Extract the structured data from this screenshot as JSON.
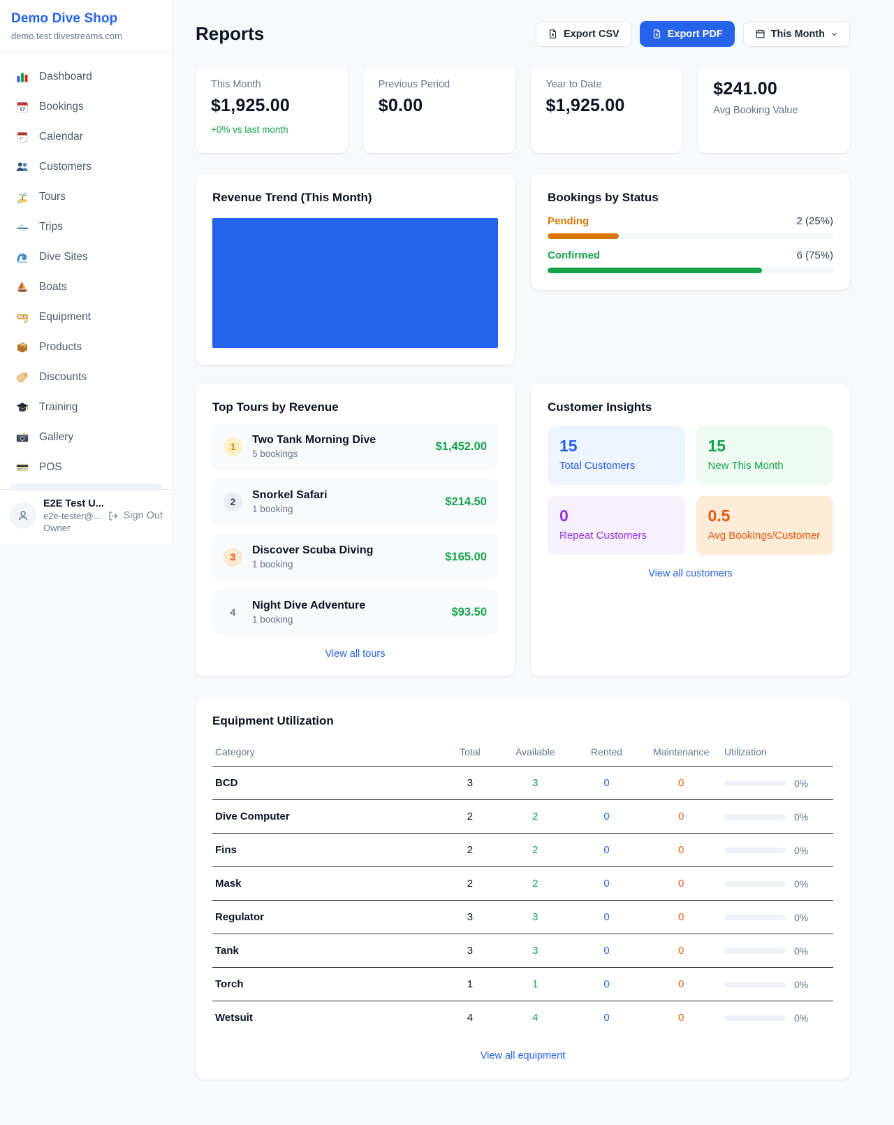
{
  "sidebar": {
    "brand": {
      "name": "Demo Dive Shop",
      "domain": "demo.test.divestreams.com"
    },
    "items": [
      {
        "label": "Dashboard",
        "icon": "bar-chart-icon"
      },
      {
        "label": "Bookings",
        "icon": "calendar-date-icon"
      },
      {
        "label": "Calendar",
        "icon": "tear-off-calendar-icon"
      },
      {
        "label": "Customers",
        "icon": "people-icon"
      },
      {
        "label": "Tours",
        "icon": "island-icon"
      },
      {
        "label": "Trips",
        "icon": "speedboat-icon"
      },
      {
        "label": "Dive Sites",
        "icon": "wave-icon"
      },
      {
        "label": "Boats",
        "icon": "sailboat-icon"
      },
      {
        "label": "Equipment",
        "icon": "dive-mask-icon"
      },
      {
        "label": "Products",
        "icon": "package-icon"
      },
      {
        "label": "Discounts",
        "icon": "tag-icon"
      },
      {
        "label": "Training",
        "icon": "graduation-cap-icon"
      },
      {
        "label": "Gallery",
        "icon": "camera-icon"
      },
      {
        "label": "POS",
        "icon": "credit-card-icon"
      }
    ],
    "user": {
      "name": "E2E Test U...",
      "email": "e2e-tester@...",
      "role": "Owner",
      "sign_out": "Sign Out"
    }
  },
  "header": {
    "title": "Reports",
    "export_csv": "Export CSV",
    "export_pdf": "Export PDF",
    "period": "This Month"
  },
  "stats": [
    {
      "label": "This Month",
      "value": "$1,925.00",
      "delta": "+0% vs last month"
    },
    {
      "label": "Previous Period",
      "value": "$0.00"
    },
    {
      "label": "Year to Date",
      "value": "$1,925.00"
    },
    {
      "label": "Avg Booking Value",
      "value": "$241.00"
    }
  ],
  "revenue_trend": {
    "title": "Revenue Trend (This Month)",
    "chart_color": "#2563eb"
  },
  "bookings_by_status": {
    "title": "Bookings by Status",
    "rows": [
      {
        "label": "Pending",
        "count_text": "2 (25%)",
        "count": 2,
        "percent": 25,
        "color": "#d97706"
      },
      {
        "label": "Confirmed",
        "count_text": "6 (75%)",
        "count": 6,
        "percent": 75,
        "color": "#16a34a"
      }
    ]
  },
  "top_tours": {
    "title": "Top Tours by Revenue",
    "items": [
      {
        "rank": "1",
        "name": "Two Tank Morning Dive",
        "bookings": "5 bookings",
        "revenue": "$1,452.00"
      },
      {
        "rank": "2",
        "name": "Snorkel Safari",
        "bookings": "1 booking",
        "revenue": "$214.50"
      },
      {
        "rank": "3",
        "name": "Discover Scuba Diving",
        "bookings": "1 booking",
        "revenue": "$165.00"
      },
      {
        "rank": "4",
        "name": "Night Dive Adventure",
        "bookings": "1 booking",
        "revenue": "$93.50"
      }
    ],
    "view_all": "View all tours"
  },
  "customer_insights": {
    "title": "Customer Insights",
    "cards": [
      {
        "value": "15",
        "label": "Total Customers",
        "color": "#2563eb"
      },
      {
        "value": "15",
        "label": "New This Month",
        "color": "#16a34a"
      },
      {
        "value": "0",
        "label": "Repeat Customers",
        "color": "#9333ea"
      },
      {
        "value": "0.5",
        "label": "Avg Bookings/Customer",
        "color": "#ea580c"
      }
    ],
    "view_all": "View all customers"
  },
  "equipment": {
    "title": "Equipment Utilization",
    "columns": [
      "Category",
      "Total",
      "Available",
      "Rented",
      "Maintenance",
      "Utilization"
    ],
    "rows": [
      {
        "category": "BCD",
        "total": "3",
        "available": "3",
        "rented": "0",
        "maintenance": "0",
        "utilization_text": "0%",
        "utilization_pct": 0
      },
      {
        "category": "Dive Computer",
        "total": "2",
        "available": "2",
        "rented": "0",
        "maintenance": "0",
        "utilization_text": "0%",
        "utilization_pct": 0
      },
      {
        "category": "Fins",
        "total": "2",
        "available": "2",
        "rented": "0",
        "maintenance": "0",
        "utilization_text": "0%",
        "utilization_pct": 0
      },
      {
        "category": "Mask",
        "total": "2",
        "available": "2",
        "rented": "0",
        "maintenance": "0",
        "utilization_text": "0%",
        "utilization_pct": 0
      },
      {
        "category": "Regulator",
        "total": "3",
        "available": "3",
        "rented": "0",
        "maintenance": "0",
        "utilization_text": "0%",
        "utilization_pct": 0
      },
      {
        "category": "Tank",
        "total": "3",
        "available": "3",
        "rented": "0",
        "maintenance": "0",
        "utilization_text": "0%",
        "utilization_pct": 0
      },
      {
        "category": "Torch",
        "total": "1",
        "available": "1",
        "rented": "0",
        "maintenance": "0",
        "utilization_text": "0%",
        "utilization_pct": 0
      },
      {
        "category": "Wetsuit",
        "total": "4",
        "available": "4",
        "rented": "0",
        "maintenance": "0",
        "utilization_text": "0%",
        "utilization_pct": 0
      }
    ],
    "view_all": "View all equipment"
  },
  "colors": {
    "accent": "#2563eb",
    "green": "#16a34a",
    "amber": "#d97706",
    "orange": "#ea580c",
    "purple": "#9333ea"
  }
}
